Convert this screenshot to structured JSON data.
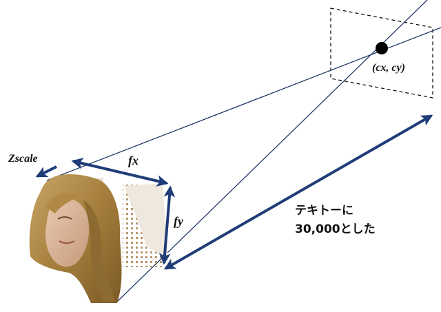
{
  "colors": {
    "line": "#1f3864",
    "arrow": "#1f3c78",
    "point": "#000000",
    "text": "#111111",
    "hair": "#b08a45",
    "skin": "#dcb9a0"
  },
  "labels": {
    "principal_point": "(cx, cy)",
    "zscale": "Zscale",
    "fx": "fx",
    "fy": "fy",
    "note_line1": "テキトーに",
    "note_line2": "30,000とした"
  }
}
